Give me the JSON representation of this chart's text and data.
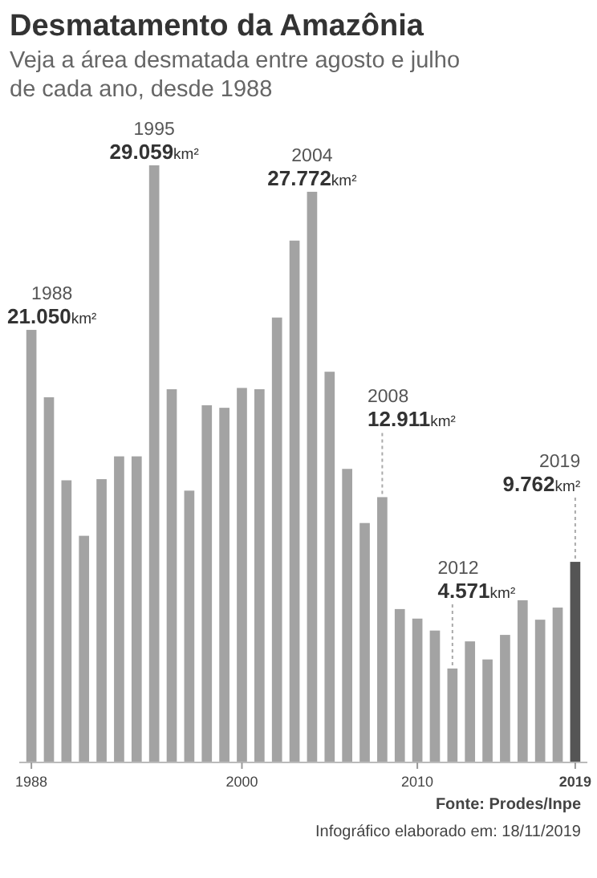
{
  "chart_data": {
    "type": "bar",
    "title": "Desmatamento da Amazônia",
    "subtitle": "Veja a área desmatada entre agosto e julho de cada ano, desde 1988",
    "x": [
      1988,
      1989,
      1990,
      1991,
      1992,
      1993,
      1994,
      1995,
      1996,
      1997,
      1998,
      1999,
      2000,
      2001,
      2002,
      2003,
      2004,
      2005,
      2006,
      2007,
      2008,
      2009,
      2010,
      2011,
      2012,
      2013,
      2014,
      2015,
      2016,
      2017,
      2018,
      2019
    ],
    "values": [
      21050,
      17770,
      13730,
      11030,
      13786,
      14896,
      14896,
      29059,
      18161,
      13227,
      17383,
      17259,
      18226,
      18165,
      21651,
      25396,
      27772,
      19014,
      14286,
      11651,
      12911,
      7464,
      7000,
      6418,
      4571,
      5891,
      5012,
      6207,
      7893,
      6947,
      7536,
      9762
    ],
    "colors": [
      "#a3a3a3",
      "#a3a3a3",
      "#a3a3a3",
      "#a3a3a3",
      "#a3a3a3",
      "#a3a3a3",
      "#a3a3a3",
      "#a3a3a3",
      "#a3a3a3",
      "#a3a3a3",
      "#a3a3a3",
      "#a3a3a3",
      "#a3a3a3",
      "#a3a3a3",
      "#a3a3a3",
      "#a3a3a3",
      "#a3a3a3",
      "#a3a3a3",
      "#a3a3a3",
      "#a3a3a3",
      "#a3a3a3",
      "#a3a3a3",
      "#a3a3a3",
      "#a3a3a3",
      "#a3a3a3",
      "#a3a3a3",
      "#a3a3a3",
      "#a3a3a3",
      "#a3a3a3",
      "#a3a3a3",
      "#a3a3a3",
      "#555555"
    ],
    "value_labels": [
      "21.050km²",
      null,
      null,
      null,
      null,
      null,
      null,
      "29.059km²",
      null,
      null,
      null,
      null,
      null,
      null,
      null,
      null,
      "27.772km²",
      null,
      null,
      null,
      "12.911km²",
      null,
      null,
      null,
      "4.571km²",
      null,
      null,
      null,
      null,
      null,
      null,
      "9.762km²"
    ],
    "annotations": [
      "1988",
      "1995",
      "2004",
      "2008",
      "2012",
      "2019",
      "Fonte: Prodes/Inpe",
      "Infográfico elaborado em: 18/11/2019"
    ],
    "xlim": [
      1987.4,
      2019.6
    ],
    "xticks": [
      1988,
      2000,
      2010,
      2019
    ]
  }
}
